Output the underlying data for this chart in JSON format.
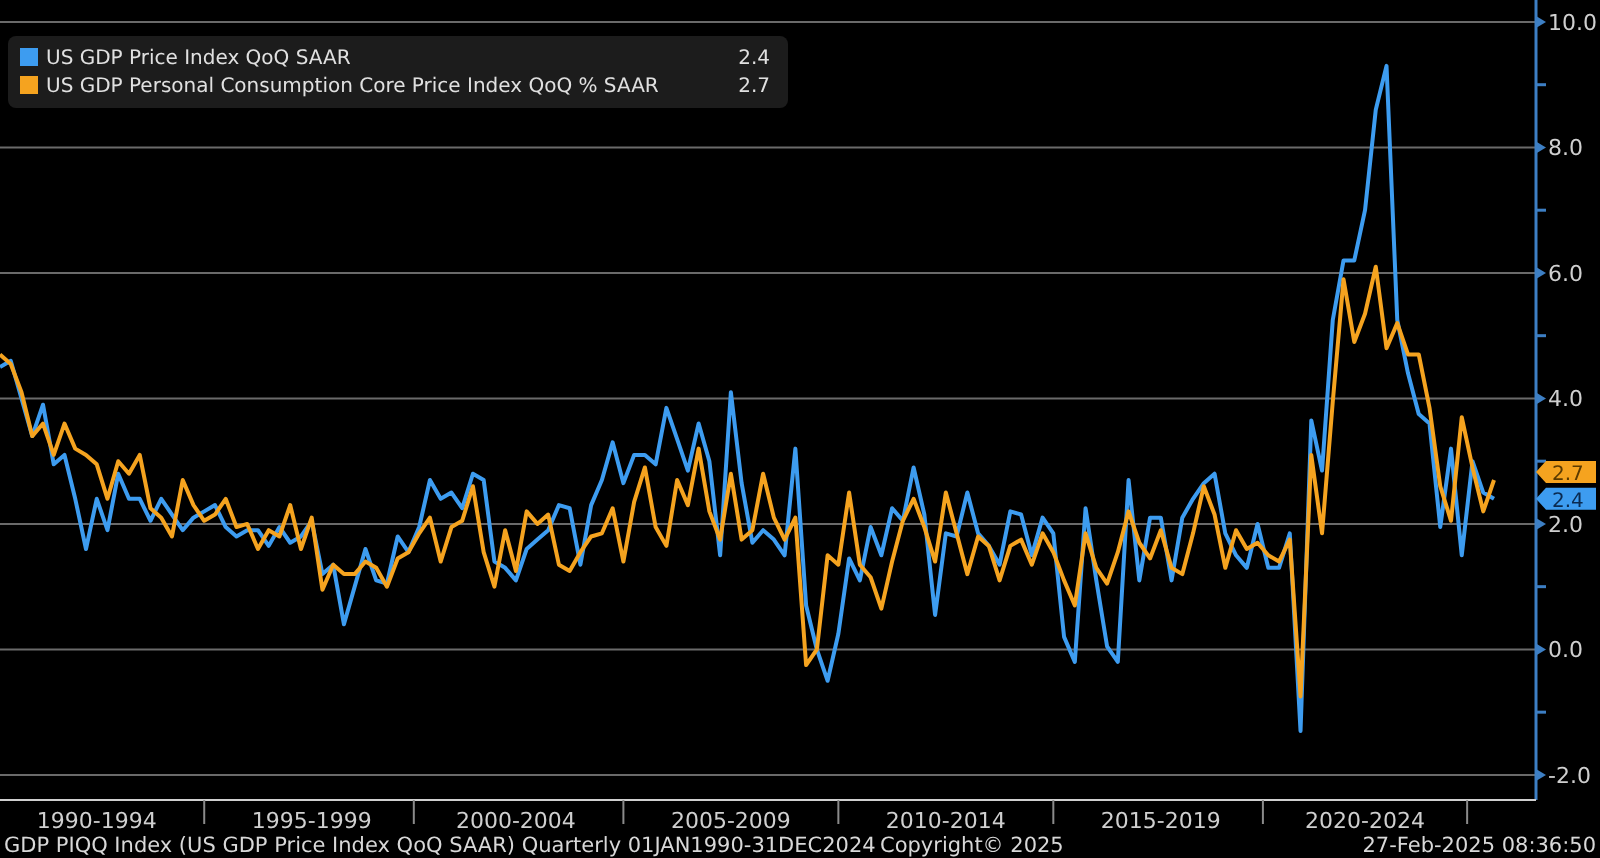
{
  "chart_data": {
    "type": "line",
    "categories": [
      null,
      null,
      null,
      null,
      null,
      null,
      null,
      null,
      null,
      "1990-1994",
      null,
      null,
      null,
      null,
      null,
      null,
      null,
      null,
      null,
      null,
      null,
      null,
      null,
      null,
      null,
      null,
      null,
      null,
      null,
      "1995-1999",
      null,
      null,
      null,
      null,
      null,
      null,
      null,
      null,
      null,
      null,
      null,
      null,
      null,
      null,
      null,
      null,
      null,
      null,
      "2000-2004",
      null,
      null,
      null,
      null,
      null,
      null,
      null,
      null,
      null,
      null,
      null,
      null,
      null,
      null,
      null,
      null,
      null,
      null,
      null,
      "2005-2009",
      null,
      null,
      null,
      null,
      null,
      null,
      null,
      null,
      null,
      null,
      null,
      null,
      null,
      null,
      null,
      null,
      null,
      null,
      null,
      "2010-2014",
      null,
      null,
      null,
      null,
      null,
      null,
      null,
      null,
      null,
      null,
      null,
      null,
      null,
      null,
      null,
      null,
      null,
      null,
      null,
      "2015-2019",
      null,
      null,
      null,
      null,
      null,
      null,
      null,
      null,
      null,
      null,
      null,
      null,
      null,
      null,
      null,
      null,
      null,
      null,
      "2020-2024",
      null,
      null,
      null,
      null,
      null,
      null,
      null,
      null,
      null,
      null,
      null,
      null
    ],
    "series": [
      {
        "name": "US GDP Price Index QoQ SAAR",
        "color": "#3d9cf0",
        "values": [
          4.5,
          4.6,
          4.0,
          3.4,
          3.9,
          2.95,
          3.1,
          2.4,
          1.6,
          2.4,
          1.9,
          2.8,
          2.4,
          2.4,
          2.05,
          2.4,
          2.15,
          1.9,
          2.1,
          2.2,
          2.3,
          1.95,
          1.8,
          1.9,
          1.9,
          1.65,
          1.95,
          1.7,
          1.8,
          2.05,
          1.2,
          1.35,
          0.4,
          1.0,
          1.6,
          1.1,
          1.05,
          1.8,
          1.55,
          1.95,
          2.7,
          2.4,
          2.5,
          2.25,
          2.8,
          2.7,
          1.4,
          1.3,
          1.1,
          1.6,
          1.75,
          1.9,
          2.3,
          2.25,
          1.35,
          2.3,
          2.7,
          3.3,
          2.65,
          3.1,
          3.1,
          2.95,
          3.85,
          3.35,
          2.85,
          3.6,
          3.0,
          1.5,
          4.1,
          2.65,
          1.7,
          1.9,
          1.75,
          1.5,
          3.2,
          0.7,
          0.0,
          -0.5,
          0.25,
          1.45,
          1.1,
          1.95,
          1.5,
          2.25,
          2.05,
          2.9,
          2.15,
          0.55,
          1.85,
          1.8,
          2.5,
          1.85,
          1.65,
          1.35,
          2.2,
          2.15,
          1.5,
          2.1,
          1.85,
          0.2,
          -0.2,
          2.25,
          1.1,
          0.05,
          -0.2,
          2.7,
          1.1,
          2.1,
          2.1,
          1.1,
          2.1,
          2.4,
          2.65,
          2.8,
          1.85,
          1.5,
          1.3,
          2.0,
          1.3,
          1.3,
          1.85,
          -1.3,
          3.65,
          2.85,
          5.25,
          6.2,
          6.2,
          7.0,
          8.6,
          9.3,
          5.25,
          4.4,
          3.75,
          3.6,
          1.95,
          3.2,
          1.5,
          3.0,
          2.5,
          2.4
        ]
      },
      {
        "name": "US GDP Personal Consumption Core Price Index QoQ % SAAR",
        "color": "#f5a31f",
        "values": [
          4.7,
          4.55,
          4.1,
          3.4,
          3.6,
          3.1,
          3.6,
          3.2,
          3.1,
          2.95,
          2.4,
          3.0,
          2.8,
          3.1,
          2.25,
          2.1,
          1.8,
          2.7,
          2.3,
          2.05,
          2.15,
          2.4,
          1.95,
          2.0,
          1.6,
          1.9,
          1.8,
          2.3,
          1.6,
          2.1,
          0.95,
          1.35,
          1.2,
          1.2,
          1.4,
          1.3,
          1.0,
          1.45,
          1.55,
          1.85,
          2.1,
          1.4,
          1.95,
          2.05,
          2.6,
          1.55,
          1.0,
          1.9,
          1.25,
          2.2,
          2.0,
          2.15,
          1.35,
          1.25,
          1.55,
          1.8,
          1.85,
          2.25,
          1.4,
          2.35,
          2.9,
          1.95,
          1.65,
          2.7,
          2.3,
          3.2,
          2.2,
          1.75,
          2.8,
          1.75,
          1.9,
          2.8,
          2.1,
          1.75,
          2.1,
          -0.25,
          0.0,
          1.5,
          1.35,
          2.5,
          1.35,
          1.15,
          0.65,
          1.4,
          2.05,
          2.4,
          1.95,
          1.4,
          2.5,
          1.85,
          1.2,
          1.8,
          1.65,
          1.1,
          1.65,
          1.75,
          1.35,
          1.85,
          1.55,
          1.1,
          0.7,
          1.85,
          1.3,
          1.05,
          1.55,
          2.2,
          1.7,
          1.45,
          1.9,
          1.3,
          1.2,
          1.85,
          2.6,
          2.15,
          1.3,
          1.9,
          1.6,
          1.7,
          1.5,
          1.4,
          1.75,
          -0.75,
          3.1,
          1.85,
          3.95,
          5.9,
          4.9,
          5.35,
          6.1,
          4.8,
          5.2,
          4.7,
          4.7,
          3.85,
          2.6,
          2.05,
          3.7,
          2.9,
          2.2,
          2.7
        ]
      }
    ],
    "ylim": [
      -2.4,
      10.35
    ],
    "yticks": [
      {
        "value": -2,
        "label": "-2.0"
      },
      {
        "value": 0,
        "label": "0.0"
      },
      {
        "value": 2,
        "label": "2.0"
      },
      {
        "value": 4,
        "label": "4.0"
      },
      {
        "value": 6,
        "label": "6.0"
      },
      {
        "value": 8,
        "label": "8.0"
      },
      {
        "value": 10,
        "label": "10.0"
      }
    ],
    "grid": "y",
    "legend": "top left",
    "marker": "none",
    "line_style": "solid",
    "annotations": [
      "2.4",
      "2.7",
      "GDP PIQQ Index (US GDP Price Index QoQ SAAR)  Quarterly 01JAN1990-31DEC2024",
      "Copyright© 2025",
      "27-Feb-2025 08:36:50"
    ]
  }
}
